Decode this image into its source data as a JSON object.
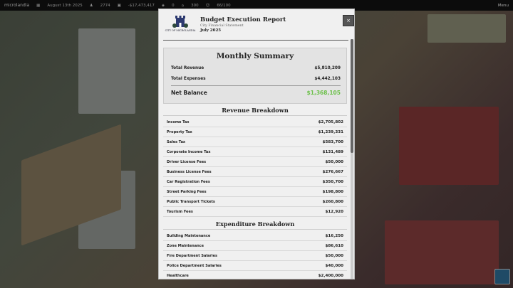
{
  "topbar": {
    "brand": "microlandia",
    "date": "August 13th 2025",
    "population": "2774",
    "money": "-$17,473,417",
    "stat_a": "0",
    "stat_b": "300",
    "approval": "66/100",
    "menu": "Menu"
  },
  "report": {
    "logo_text": "CITY OF MICROLANDIA",
    "logo_tagline": "",
    "title": "Budget Execution Report",
    "subtitle": "City Financial Statement",
    "period": "July 2025",
    "close_label": "×",
    "summary": {
      "title": "Monthly Summary",
      "revenue_label": "Total Revenue",
      "revenue": "$5,810,209",
      "expenses_label": "Total Expenses",
      "expenses": "$4,442,103",
      "net_label": "Net Balance",
      "net": "$1,368,105",
      "net_color": "#6cc04a"
    },
    "revenue_title": "Revenue Breakdown",
    "revenue": [
      {
        "label": "Income Tax",
        "value": "$2,705,802"
      },
      {
        "label": "Property Tax",
        "value": "$1,239,331"
      },
      {
        "label": "Sales Tax",
        "value": "$583,700"
      },
      {
        "label": "Corporate Income Tax",
        "value": "$131,489"
      },
      {
        "label": "Driver License Fees",
        "value": "$50,000"
      },
      {
        "label": "Business License Fees",
        "value": "$276,667"
      },
      {
        "label": "Car Registration Fees",
        "value": "$350,700"
      },
      {
        "label": "Street Parking Fees",
        "value": "$198,800"
      },
      {
        "label": "Public Transport Tickets",
        "value": "$260,800"
      },
      {
        "label": "Tourism Fees",
        "value": "$12,920"
      }
    ],
    "expenditure_title": "Expenditure Breakdown",
    "expenditure": [
      {
        "label": "Building Maintenance",
        "value": "$16,250"
      },
      {
        "label": "Zone Maintenance",
        "value": "$86,610"
      },
      {
        "label": "Fire Department Salaries",
        "value": "$50,000"
      },
      {
        "label": "Police Department Salaries",
        "value": "$40,000"
      },
      {
        "label": "Healthcare",
        "value": "$2,400,000"
      }
    ]
  }
}
